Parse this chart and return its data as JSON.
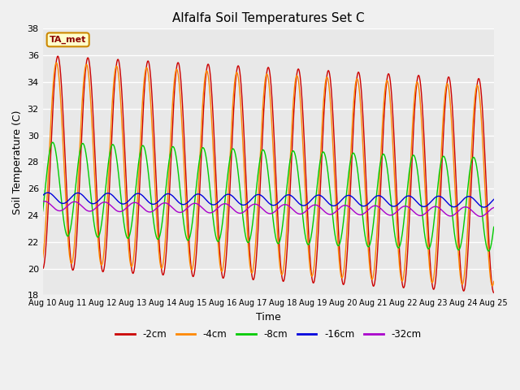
{
  "title": "Alfalfa Soil Temperatures Set C",
  "xlabel": "Time",
  "ylabel": "Soil Temperature (C)",
  "ylim": [
    18,
    38
  ],
  "xlim": [
    0,
    15
  ],
  "x_tick_labels": [
    "Aug 10",
    "Aug 11",
    "Aug 12",
    "Aug 13",
    "Aug 14",
    "Aug 15",
    "Aug 16",
    "Aug 17",
    "Aug 18",
    "Aug 19",
    "Aug 20",
    "Aug 21",
    "Aug 22",
    "Aug 23",
    "Aug 24",
    "Aug 25"
  ],
  "bg_color": "#e8e8e8",
  "fig_color": "#f0f0f0",
  "ta_met_label": "TA_met",
  "series": [
    {
      "label": "-2cm",
      "color": "#cc0000",
      "lw": 1.0
    },
    {
      "label": "-4cm",
      "color": "#ff8800",
      "lw": 1.0
    },
    {
      "label": "-8cm",
      "color": "#00cc00",
      "lw": 1.0
    },
    {
      "label": "-16cm",
      "color": "#0000dd",
      "lw": 1.0
    },
    {
      "label": "-32cm",
      "color": "#aa00cc",
      "lw": 1.0
    }
  ],
  "n_points": 1440,
  "days": 15,
  "params": {
    "cm2": {
      "mean": 28.0,
      "amp": 8.0,
      "phase": -1.57,
      "trend": -0.12
    },
    "cm4": {
      "mean": 28.0,
      "amp": 7.5,
      "phase": -1.27,
      "trend": -0.12
    },
    "cm8": {
      "mean": 26.0,
      "amp": 3.5,
      "phase": -0.5,
      "trend": -0.08
    },
    "cm16": {
      "mean": 25.3,
      "amp": 0.4,
      "phase": 0.5,
      "trend": -0.02
    },
    "cm32": {
      "mean": 24.7,
      "amp": 0.35,
      "phase": 1.2,
      "trend": -0.03
    }
  }
}
